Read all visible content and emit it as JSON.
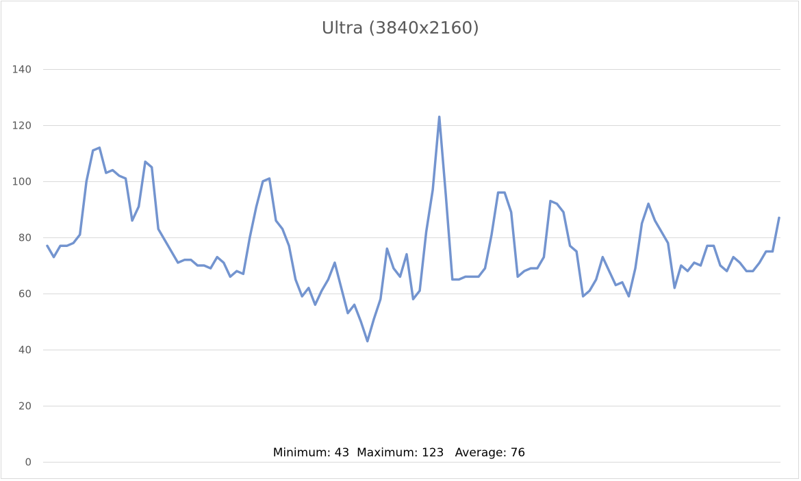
{
  "chart_data": {
    "type": "line",
    "title": "Ultra (3840x2160)",
    "xlabel": "",
    "ylabel": "",
    "ylim": [
      0,
      140
    ],
    "yticks": [
      0,
      20,
      40,
      60,
      80,
      100,
      120,
      140
    ],
    "grid": true,
    "legend": "none",
    "line_color": "#7394CF",
    "series": [
      {
        "values": [
          77,
          73,
          77,
          77,
          78,
          81,
          100,
          111,
          112,
          103,
          104,
          102,
          101,
          86,
          91,
          107,
          105,
          83,
          79,
          75,
          71,
          72,
          72,
          70,
          70,
          69,
          73,
          71,
          66,
          68,
          67,
          80,
          91,
          100,
          101,
          86,
          83,
          77,
          65,
          59,
          62,
          56,
          61,
          65,
          71,
          62,
          53,
          56,
          50,
          43,
          51,
          58,
          76,
          69,
          66,
          74,
          58,
          61,
          82,
          97,
          123,
          95,
          65,
          65,
          66,
          66,
          66,
          69,
          81,
          96,
          96,
          89,
          66,
          68,
          69,
          69,
          73,
          93,
          92,
          89,
          77,
          75,
          59,
          61,
          65,
          73,
          68,
          63,
          64,
          59,
          69,
          85,
          92,
          86,
          82,
          78,
          62,
          70,
          68,
          71,
          70,
          77,
          77,
          70,
          68,
          73,
          71,
          68,
          68,
          71,
          75,
          75,
          87
        ]
      }
    ],
    "annotation": {
      "minimum": "Minimum: 43",
      "maximum": "Maximum: 123",
      "average": "Average: 76"
    }
  }
}
